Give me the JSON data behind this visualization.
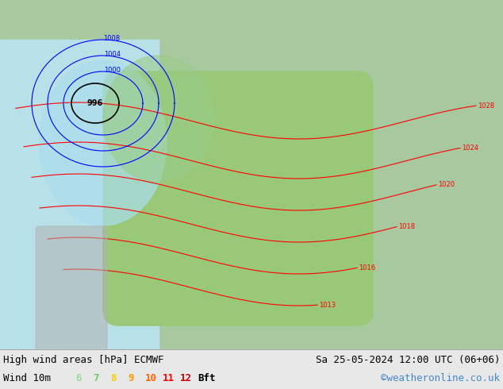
{
  "title_left": "High wind areas [hPa] ECMWF",
  "title_right": "Sa 25-05-2024 12:00 UTC (06+06)",
  "subtitle_left": "Wind 10m",
  "subtitle_right": "©weatheronline.co.uk",
  "bft_labels": [
    "6",
    "7",
    "8",
    "9",
    "10",
    "11",
    "12",
    "Bft"
  ],
  "bft_colors": [
    "#99dd99",
    "#66cc66",
    "#ffcc00",
    "#ff9900",
    "#ff6600",
    "#ff0000",
    "#cc0000",
    "#000000"
  ],
  "bg_color": "#f0f0f0",
  "map_bg": "#90c090",
  "legend_bg": "#d8d8d8",
  "title_fontsize": 9,
  "subtitle_fontsize": 9,
  "bft_fontsize": 9
}
